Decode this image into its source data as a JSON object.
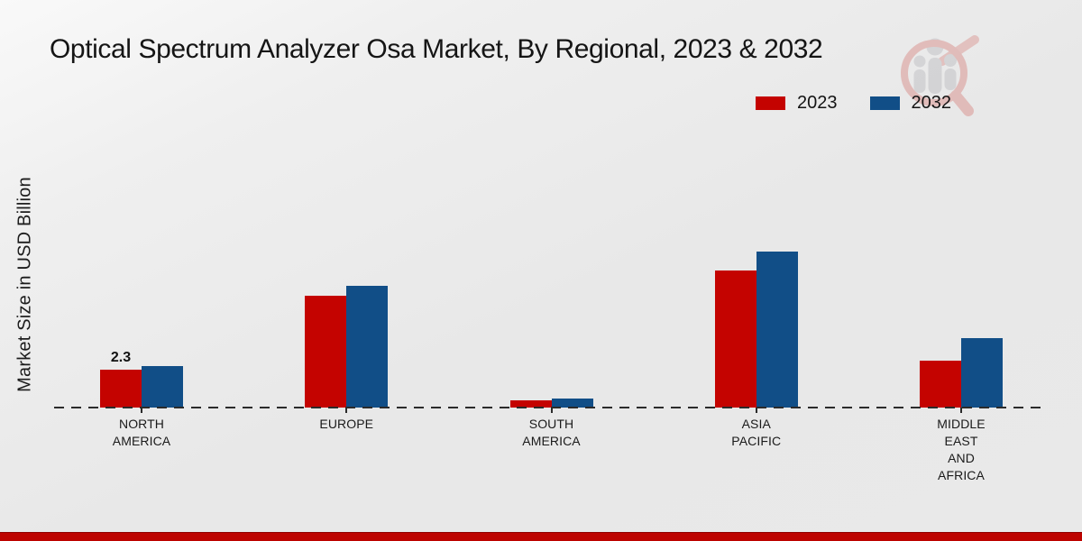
{
  "title": "Optical Spectrum Analyzer Osa Market, By Regional, 2023 & 2032",
  "ylabel": "Market Size in USD Billion",
  "legend": {
    "items": [
      {
        "label": "2023",
        "color": "#c40300"
      },
      {
        "label": "2032",
        "color": "#114e87"
      }
    ]
  },
  "colors": {
    "series_2023": "#c40300",
    "series_2032": "#114e87",
    "footer_strip": "#bd0300",
    "baseline": "#2b2b2b",
    "background": "#e9e9e9"
  },
  "watermark": {
    "name": "market-research-magnifier-logo"
  },
  "footer": {
    "strip_color": "#bd0300"
  },
  "chart_data": {
    "type": "bar",
    "title": "Optical Spectrum Analyzer Osa Market, By Regional, 2023 & 2032",
    "xlabel": "",
    "ylabel": "Market Size in USD Billion",
    "categories": [
      "NORTH AMERICA",
      "EUROPE",
      "SOUTH AMERICA",
      "ASIA PACIFIC",
      "MIDDLE EAST AND AFRICA"
    ],
    "series": [
      {
        "name": "2023",
        "color": "#c40300",
        "values": [
          2.3,
          6.8,
          0.45,
          8.3,
          2.85
        ]
      },
      {
        "name": "2032",
        "color": "#114e87",
        "values": [
          2.5,
          7.4,
          0.55,
          9.5,
          4.2
        ]
      }
    ],
    "data_labels": [
      {
        "series": "2023",
        "category": "NORTH AMERICA",
        "text": "2.3"
      }
    ],
    "ylim": [
      0,
      10
    ],
    "grid": false,
    "axis_numbers_shown": false,
    "legend_position": "top-right",
    "baseline_style": "dashed"
  }
}
